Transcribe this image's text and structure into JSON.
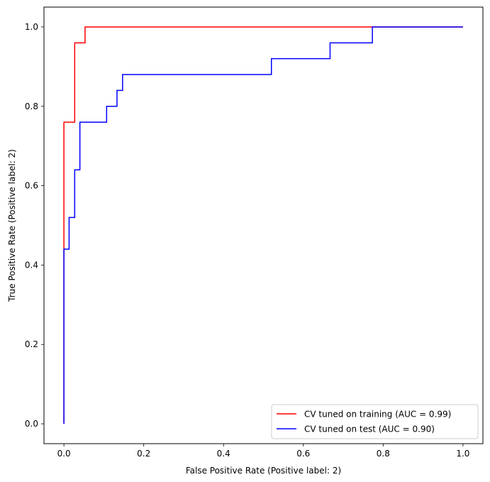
{
  "chart_data": {
    "type": "line",
    "xlabel": "False Positive Rate (Positive label: 2)",
    "ylabel": "True Positive Rate (Positive label: 2)",
    "xlim": [
      -0.05,
      1.05
    ],
    "ylim": [
      -0.05,
      1.05
    ],
    "xticks": [
      0.0,
      0.2,
      0.4,
      0.6,
      0.8,
      1.0
    ],
    "yticks": [
      0.0,
      0.2,
      0.4,
      0.6,
      0.8,
      1.0
    ],
    "xtick_labels": [
      "0.0",
      "0.2",
      "0.4",
      "0.6",
      "0.8",
      "1.0"
    ],
    "ytick_labels": [
      "0.0",
      "0.2",
      "0.4",
      "0.6",
      "0.8",
      "1.0"
    ],
    "grid": false,
    "legend_position": "lower-right",
    "series": [
      {
        "name": "CV tuned on training (AUC = 0.99)",
        "color": "#ff0000",
        "x": [
          0.0,
          0.0,
          0.0,
          0.027,
          0.027,
          0.053,
          0.053,
          0.773,
          1.0
        ],
        "y": [
          0.0,
          0.44,
          0.76,
          0.76,
          0.96,
          0.96,
          1.0,
          1.0,
          1.0
        ]
      },
      {
        "name": "CV tuned on test (AUC = 0.90)",
        "color": "#0000ff",
        "x": [
          0.0,
          0.0,
          0.013,
          0.013,
          0.027,
          0.027,
          0.04,
          0.04,
          0.107,
          0.107,
          0.133,
          0.133,
          0.147,
          0.147,
          0.52,
          0.52,
          0.667,
          0.667,
          0.773,
          0.773,
          1.0
        ],
        "y": [
          0.0,
          0.44,
          0.44,
          0.52,
          0.52,
          0.64,
          0.64,
          0.76,
          0.76,
          0.8,
          0.8,
          0.84,
          0.84,
          0.88,
          0.88,
          0.92,
          0.92,
          0.96,
          0.96,
          1.0,
          1.0
        ]
      }
    ]
  }
}
